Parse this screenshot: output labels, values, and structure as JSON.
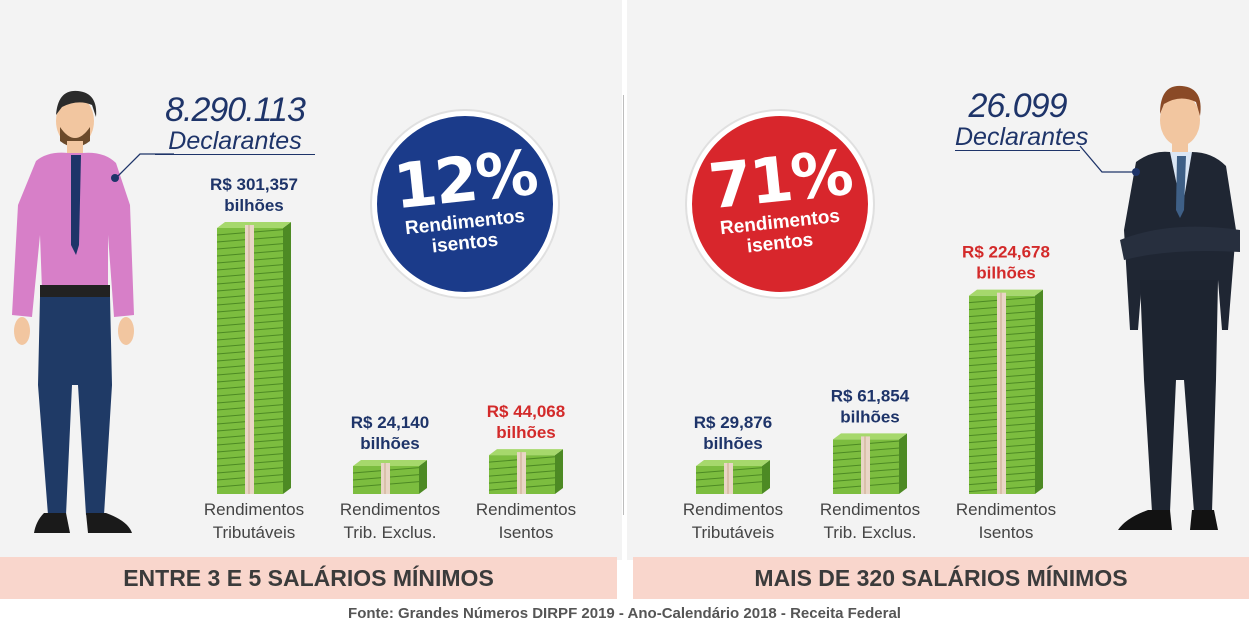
{
  "colors": {
    "value_blue": "#1e3469",
    "value_red": "#d32a2a",
    "badge_blue": "#1b3b8a",
    "badge_red": "#d8262c",
    "money_green": "#7cbd3f",
    "money_dark": "#4d8a24",
    "band": "#f9d6cc"
  },
  "left": {
    "declarants_number": "8.290.113",
    "declarants_label": "Declarantes",
    "badge_percent": "12%",
    "badge_text_line1": "Rendimentos",
    "badge_text_line2": "isentos",
    "band_label": "ENTRE 3 E 5 SALÁRIOS MÍNIMOS",
    "person_icon": "man-pink-shirt-icon"
  },
  "right": {
    "declarants_number": "26.099",
    "declarants_label": "Declarantes",
    "badge_percent": "71%",
    "badge_text_line1": "Rendimentos",
    "badge_text_line2": "isentos",
    "band_label": "MAIS DE 320 SALÁRIOS MÍNIMOS",
    "person_icon": "man-dark-suit-icon"
  },
  "source": "Fonte: Grandes Números DIRPF 2019 - Ano-Calendário 2018 - Receita Federal",
  "chart_data": [
    {
      "type": "bar",
      "icon": "money-stack-icon",
      "categories": [
        [
          "Rendimentos",
          "Tributáveis"
        ],
        [
          "Rendimentos",
          "Trib. Exclus."
        ],
        [
          "Rendimentos",
          "Isentos"
        ]
      ],
      "values": [
        301.357,
        24.14,
        44.068
      ],
      "value_labels": [
        [
          "R$ 301,357",
          "bilhões"
        ],
        [
          "R$ 24,140",
          "bilhões"
        ],
        [
          "R$ 44,068",
          "bilhões"
        ]
      ],
      "label_colors": [
        "#1e3469",
        "#1e3469",
        "#d32a2a"
      ]
    },
    {
      "type": "bar",
      "icon": "money-stack-icon",
      "categories": [
        [
          "Rendimentos",
          "Tributáveis"
        ],
        [
          "Rendimentos",
          "Trib. Exclus."
        ],
        [
          "Rendimentos",
          "Isentos"
        ]
      ],
      "values": [
        29.876,
        61.854,
        224.678
      ],
      "value_labels": [
        [
          "R$ 29,876",
          "bilhões"
        ],
        [
          "R$ 61,854",
          "bilhões"
        ],
        [
          "R$ 224,678",
          "bilhões"
        ]
      ],
      "label_colors": [
        "#1e3469",
        "#1e3469",
        "#d32a2a"
      ]
    }
  ]
}
